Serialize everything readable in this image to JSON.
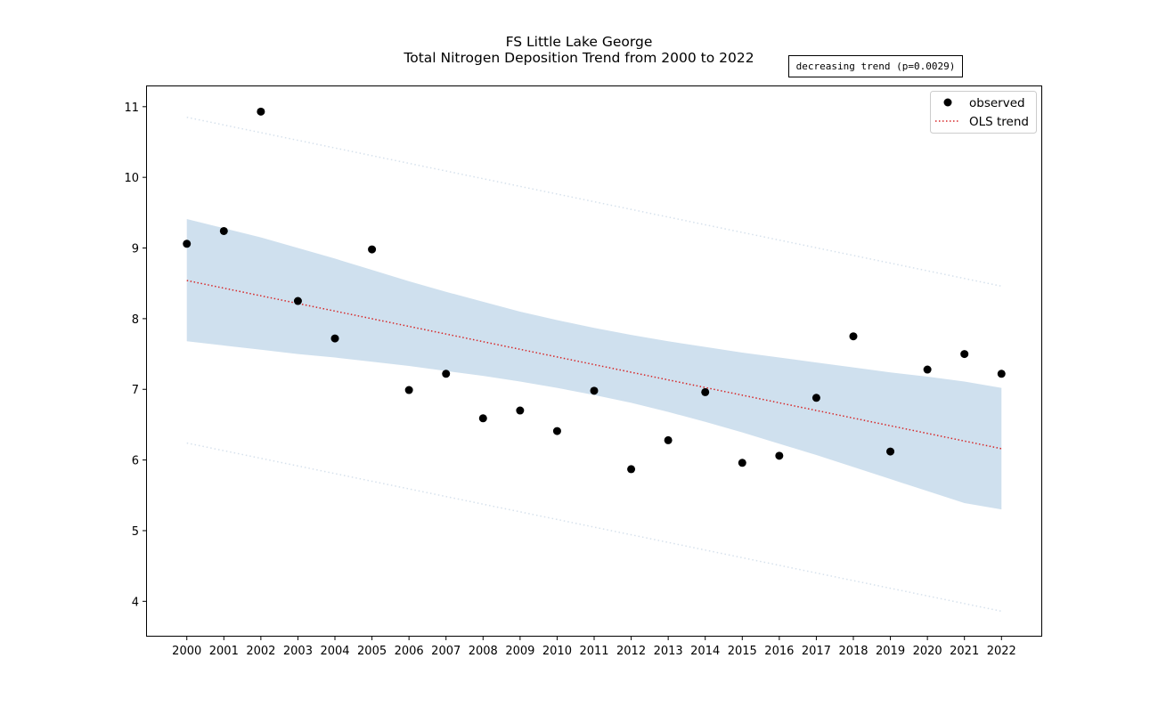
{
  "chart_data": {
    "type": "scatter",
    "title": "FS Little Lake George",
    "subtitle": "Total Nitrogen Deposition Trend from 2000 to 2022",
    "xlabel": "",
    "ylabel": "",
    "x": [
      2000,
      2001,
      2002,
      2003,
      2004,
      2005,
      2006,
      2007,
      2008,
      2009,
      2010,
      2011,
      2012,
      2013,
      2014,
      2015,
      2016,
      2017,
      2018,
      2019,
      2020,
      2021,
      2022
    ],
    "xticks": [
      "2000",
      "2001",
      "2002",
      "2003",
      "2004",
      "2005",
      "2006",
      "2007",
      "2008",
      "2009",
      "2010",
      "2011",
      "2012",
      "2013",
      "2014",
      "2015",
      "2016",
      "2017",
      "2018",
      "2019",
      "2020",
      "2021",
      "2022"
    ],
    "yticks": [
      "4",
      "5",
      "6",
      "7",
      "8",
      "9",
      "10",
      "11"
    ],
    "ylim": [
      3.5,
      11.3
    ],
    "xlim": [
      1998.9,
      2023.1
    ],
    "grid": false,
    "legend_position": "top-right",
    "series": [
      {
        "name": "observed",
        "kind": "scatter",
        "color": "#000000",
        "values": [
          9.06,
          9.24,
          10.93,
          8.25,
          7.72,
          8.98,
          6.99,
          7.22,
          6.59,
          6.7,
          6.41,
          6.98,
          5.87,
          6.28,
          6.96,
          5.96,
          6.06,
          6.88,
          7.75,
          6.12,
          7.28,
          7.5,
          7.22
        ]
      },
      {
        "name": "OLS trend",
        "kind": "line",
        "style": "dotted",
        "color": "#d62728",
        "start": 8.54,
        "end": 6.16
      }
    ],
    "confidence_band": {
      "color": "#cfe0ee",
      "lower": [
        7.68,
        7.62,
        7.56,
        7.5,
        7.45,
        7.39,
        7.33,
        7.26,
        7.19,
        7.11,
        7.02,
        6.92,
        6.81,
        6.68,
        6.54,
        6.39,
        6.23,
        6.07,
        5.9,
        5.73,
        5.56,
        5.39,
        5.3
      ],
      "upper": [
        9.41,
        9.28,
        9.15,
        9.0,
        8.85,
        8.69,
        8.53,
        8.38,
        8.24,
        8.1,
        7.98,
        7.87,
        7.77,
        7.68,
        7.6,
        7.52,
        7.45,
        7.38,
        7.31,
        7.24,
        7.18,
        7.11,
        7.02
      ]
    },
    "prediction_band": {
      "color": "#d6e1ec",
      "style": "dotted",
      "lower_start": 6.24,
      "lower_end": 3.86,
      "upper_start": 10.85,
      "upper_end": 8.46
    },
    "annotation": "decreasing trend (p=0.0029)"
  }
}
